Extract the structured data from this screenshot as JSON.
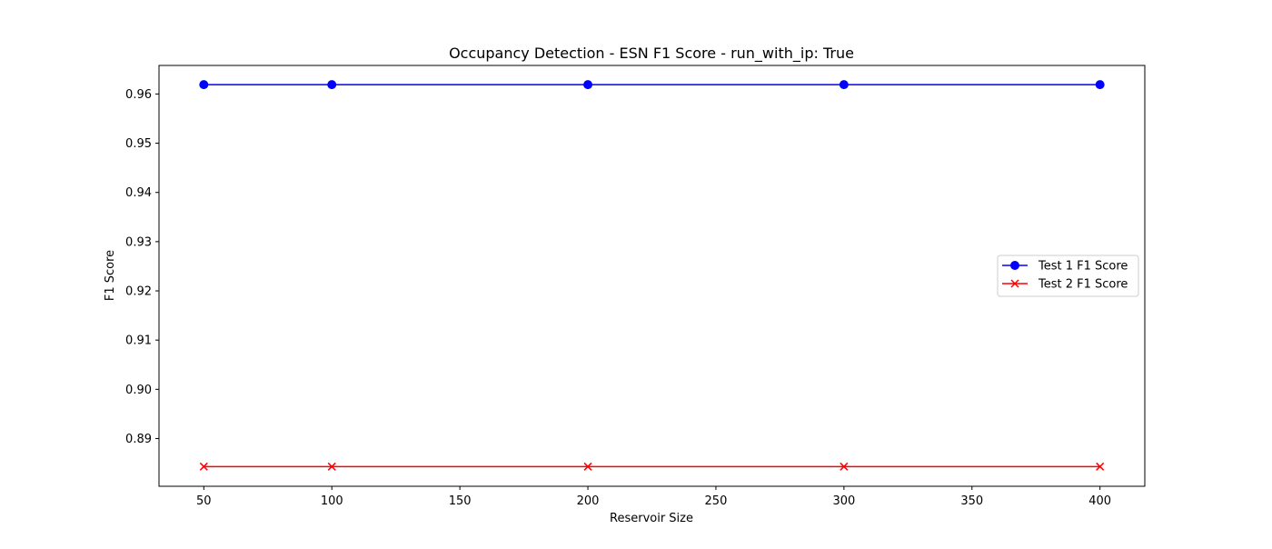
{
  "chart_data": {
    "type": "line",
    "title": "Occupancy Detection - ESN F1 Score - run_with_ip: True",
    "xlabel": "Reservoir Size",
    "ylabel": "F1 Score",
    "x": [
      50,
      100,
      200,
      300,
      400
    ],
    "xlim": [
      32.5,
      417.5
    ],
    "ylim": [
      0.8803,
      0.9658
    ],
    "xticks": [
      50,
      100,
      150,
      200,
      250,
      300,
      350,
      400
    ],
    "xtick_labels": [
      "50",
      "100",
      "150",
      "200",
      "250",
      "300",
      "350",
      "400"
    ],
    "yticks": [
      0.89,
      0.9,
      0.91,
      0.92,
      0.93,
      0.94,
      0.95,
      0.96
    ],
    "ytick_labels": [
      "0.89",
      "0.90",
      "0.91",
      "0.92",
      "0.93",
      "0.94",
      "0.95",
      "0.96"
    ],
    "grid": false,
    "legend_position": "center-right",
    "series": [
      {
        "name": "Test 1 F1 Score",
        "values": [
          0.9619,
          0.9619,
          0.9619,
          0.9619,
          0.9619
        ],
        "color": "#0000ff",
        "marker": "circle"
      },
      {
        "name": "Test 2 F1 Score",
        "values": [
          0.8843,
          0.8843,
          0.8843,
          0.8843,
          0.8843
        ],
        "color": "#ff0000",
        "marker": "x"
      }
    ]
  }
}
